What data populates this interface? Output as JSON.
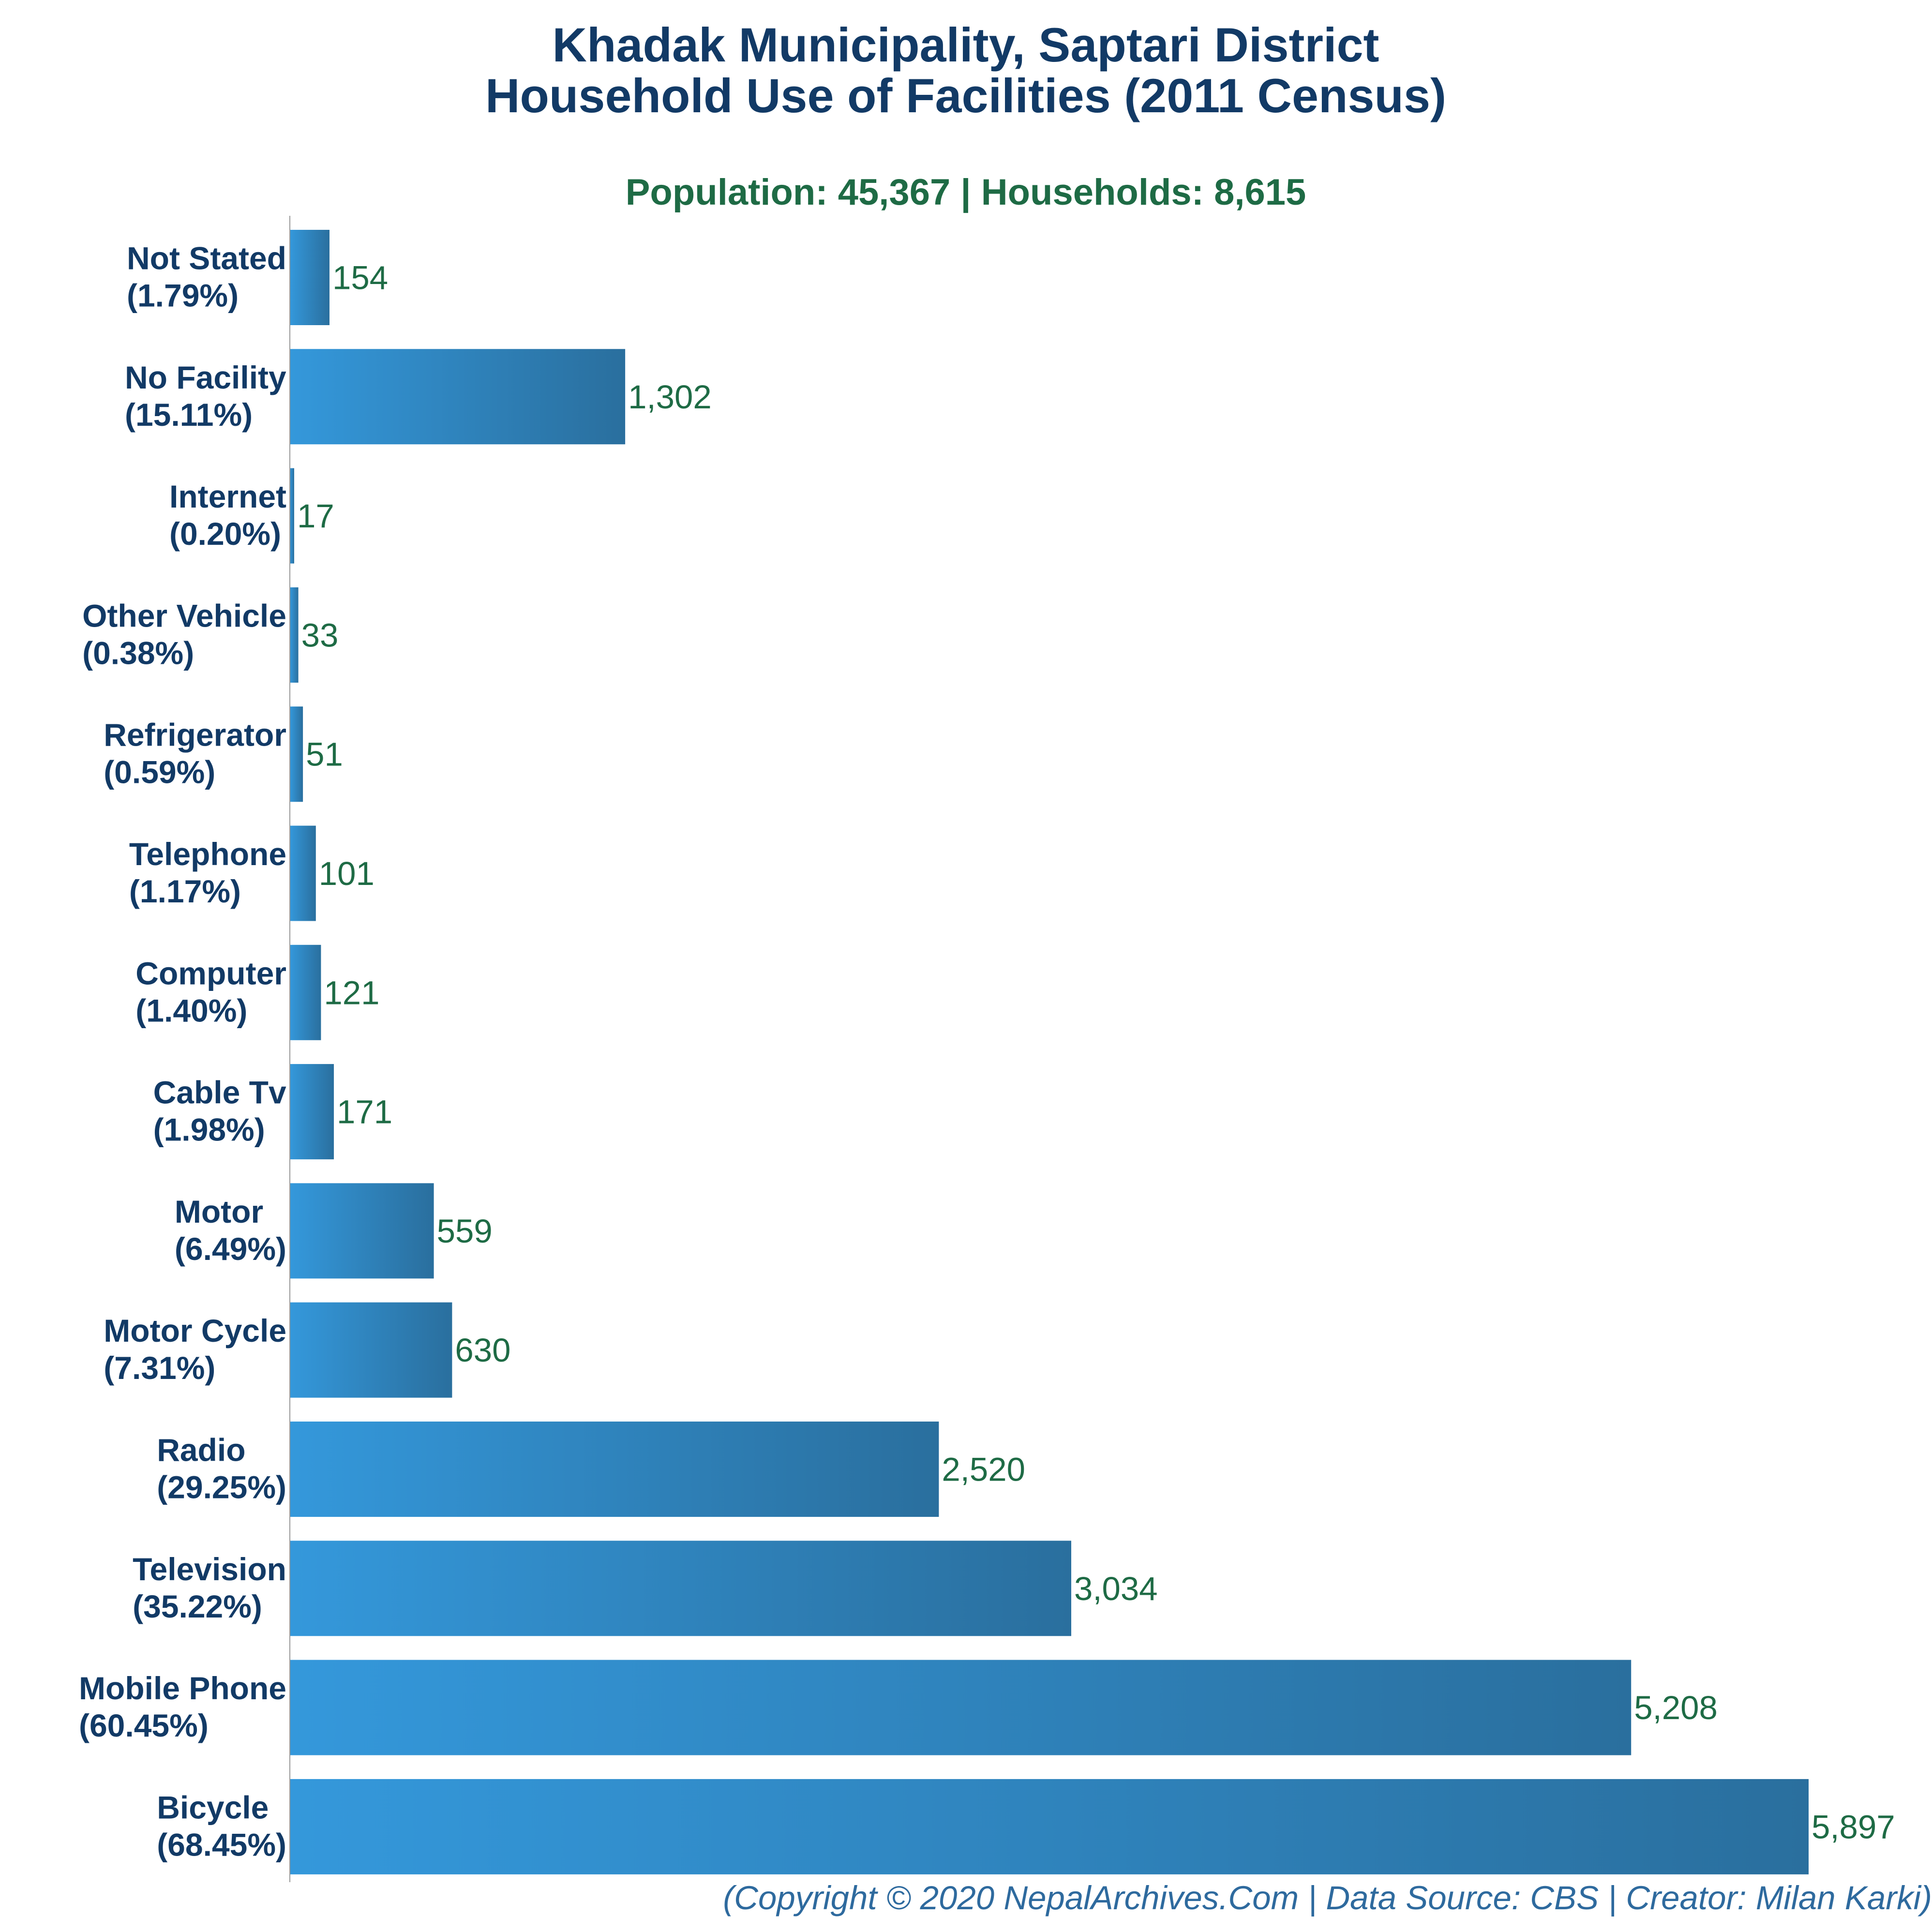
{
  "chart_data": {
    "type": "bar",
    "orientation": "horizontal",
    "title_lines": [
      "Khadak Municipality, Saptari District",
      "Household Use of Facilities (2011 Census)"
    ],
    "subtitle": "Population: 45,367 | Households: 8,615",
    "footer": "(Copyright © 2020 NepalArchives.Com | Data Source: CBS | Creator: Milan Karki)",
    "xlim": [
      0,
      5897
    ],
    "grid": false,
    "bars": [
      {
        "name": "Not Stated",
        "pct": "(1.79%)",
        "value": 154,
        "value_label": "154"
      },
      {
        "name": "No Facility",
        "pct": "(15.11%)",
        "value": 1302,
        "value_label": "1,302"
      },
      {
        "name": "Internet",
        "pct": "(0.20%)",
        "value": 17,
        "value_label": "17"
      },
      {
        "name": "Other Vehicle",
        "pct": "(0.38%)",
        "value": 33,
        "value_label": "33"
      },
      {
        "name": "Refrigerator",
        "pct": "(0.59%)",
        "value": 51,
        "value_label": "51"
      },
      {
        "name": "Telephone",
        "pct": "(1.17%)",
        "value": 101,
        "value_label": "101"
      },
      {
        "name": "Computer",
        "pct": "(1.40%)",
        "value": 121,
        "value_label": "121"
      },
      {
        "name": "Cable Tv",
        "pct": "(1.98%)",
        "value": 171,
        "value_label": "171"
      },
      {
        "name": "Motor",
        "pct": "(6.49%)",
        "value": 559,
        "value_label": "559"
      },
      {
        "name": "Motor Cycle",
        "pct": "(7.31%)",
        "value": 630,
        "value_label": "630"
      },
      {
        "name": "Radio",
        "pct": "(29.25%)",
        "value": 2520,
        "value_label": "2,520"
      },
      {
        "name": "Television",
        "pct": "(35.22%)",
        "value": 3034,
        "value_label": "3,034"
      },
      {
        "name": "Mobile Phone",
        "pct": "(60.45%)",
        "value": 5208,
        "value_label": "5,208"
      },
      {
        "name": "Bicycle",
        "pct": "(68.45%)",
        "value": 5897,
        "value_label": "5,897"
      }
    ],
    "colors": {
      "bar_start": "#3498db",
      "bar_end": "#2a6f9e",
      "title": "#123a66",
      "subtitle": "#1e6b45",
      "value_label": "#1e6b45",
      "footer": "#2e6a9e",
      "axis": "#9a9a9a"
    }
  }
}
